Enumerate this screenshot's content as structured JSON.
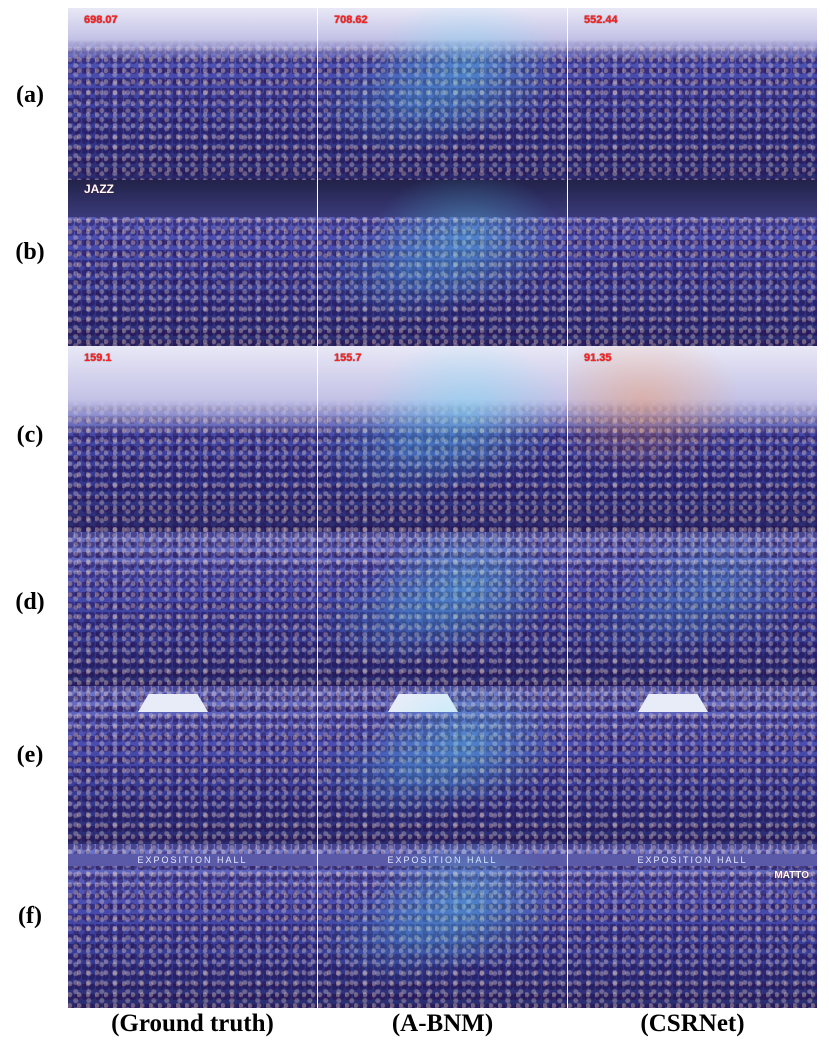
{
  "rows": [
    {
      "label": "(a)",
      "counts": [
        "698.07",
        "708.62",
        "552.44"
      ]
    },
    {
      "label": "(b)",
      "counts": [
        "",
        "",
        ""
      ]
    },
    {
      "label": "(c)",
      "counts": [
        "159.1",
        "155.7",
        "91.35"
      ]
    },
    {
      "label": "(d)",
      "counts": [
        "",
        "",
        ""
      ]
    },
    {
      "label": "(e)",
      "counts": [
        "",
        "",
        ""
      ]
    },
    {
      "label": "(f)",
      "counts": [
        "",
        "",
        ""
      ]
    }
  ],
  "columns": [
    "(Ground truth)",
    "(A-BNM)",
    "(CSRNet)"
  ],
  "signage": {
    "jazz": "JAZZ",
    "hall": "EXPOSITION HALL",
    "corner": "MATTO"
  }
}
